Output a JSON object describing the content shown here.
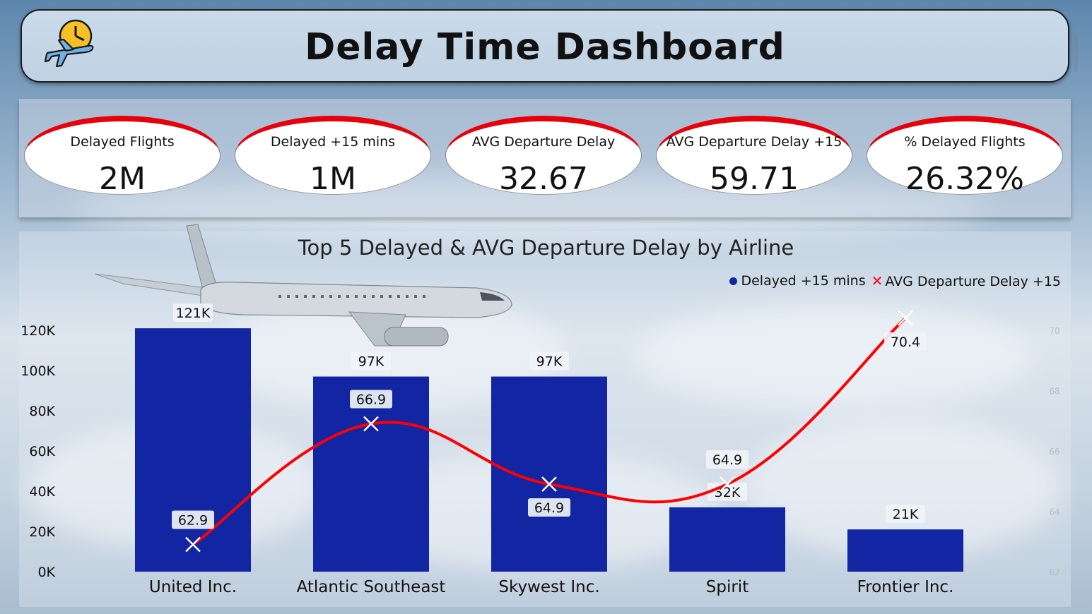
{
  "header": {
    "title": "Delay Time Dashboard",
    "logo_icon": "plane-clock-icon"
  },
  "kpis": [
    {
      "label": "Delayed Flights",
      "value": "2M"
    },
    {
      "label": "Delayed +15 mins",
      "value": "1M"
    },
    {
      "label": "AVG Departure Delay",
      "value": "32.67"
    },
    {
      "label": "AVG Departure Delay +15",
      "value": "59.71"
    },
    {
      "label": "% Delayed Flights",
      "value": "26.32%"
    }
  ],
  "colors": {
    "bar": "#1225a3",
    "line": "#ff0000",
    "kpi_accent": "#e8000b"
  },
  "chart_data": {
    "type": "bar",
    "title": "Top 5 Delayed & AVG Departure Delay by Airline",
    "categories": [
      "United Inc.",
      "Atlantic Southeast",
      "Skywest Inc.",
      "Spirit",
      "Frontier Inc."
    ],
    "series": [
      {
        "name": "Delayed +15 mins",
        "type": "bar",
        "axis": "left",
        "values": [
          121000,
          97000,
          97000,
          32000,
          21000
        ],
        "labels": [
          "121K",
          "97K",
          "97K",
          "32K",
          "21K"
        ]
      },
      {
        "name": "AVG Departure Delay +15",
        "type": "line",
        "axis": "right",
        "values": [
          62.9,
          66.9,
          64.9,
          64.9,
          70.4
        ],
        "labels": [
          "62.9",
          "66.9",
          "64.9",
          "64.9",
          "70.4"
        ]
      }
    ],
    "y_left": {
      "ylim": [
        0,
        120000
      ],
      "ticks": [
        "0K",
        "20K",
        "40K",
        "60K",
        "80K",
        "100K",
        "120K"
      ]
    },
    "y_right": {
      "ylim": [
        62,
        70
      ],
      "ticks": [
        "62",
        "64",
        "66",
        "68",
        "70"
      ]
    },
    "legend": "top-right",
    "grid": false
  }
}
